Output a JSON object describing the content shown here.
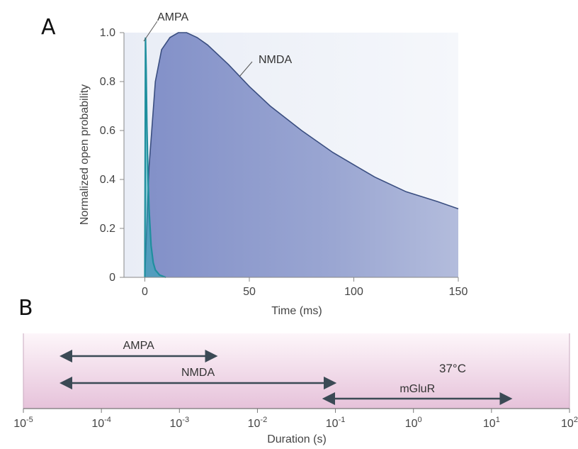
{
  "panels": {
    "a_letter": "A",
    "b_letter": "B"
  },
  "chart_data": [
    {
      "type": "area",
      "xlabel": "Time (ms)",
      "ylabel": "Normalized open probability",
      "xlim": [
        -10,
        150
      ],
      "ylim": [
        0,
        1.0
      ],
      "x_ticks": [
        "0",
        "50",
        "100",
        "150"
      ],
      "y_ticks": [
        "0",
        "0.2",
        "0.4",
        "0.6",
        "0.8",
        "1.0"
      ],
      "series": [
        {
          "name": "AMPA",
          "color": "#2aa7b5",
          "x": [
            0,
            0.3,
            0.6,
            1,
            1.5,
            2,
            3,
            4,
            5,
            7,
            10
          ],
          "y": [
            0.0,
            0.98,
            0.85,
            0.62,
            0.42,
            0.28,
            0.13,
            0.06,
            0.03,
            0.01,
            0.0
          ]
        },
        {
          "name": "NMDA",
          "color": "#3a4e80",
          "fill": "#7f8fc5",
          "x": [
            0,
            2,
            5,
            8,
            12,
            16,
            20,
            25,
            30,
            40,
            50,
            60,
            75,
            90,
            100,
            110,
            125,
            140,
            150
          ],
          "y": [
            0.0,
            0.45,
            0.8,
            0.93,
            0.98,
            1.0,
            1.0,
            0.98,
            0.95,
            0.87,
            0.78,
            0.7,
            0.6,
            0.51,
            0.46,
            0.41,
            0.35,
            0.31,
            0.28
          ]
        }
      ]
    },
    {
      "type": "range",
      "xlabel": "Duration (s)",
      "x_scale": "log",
      "xlim": [
        1e-05,
        100
      ],
      "x_ticks": [
        {
          "base": "10",
          "exp": "-5"
        },
        {
          "base": "10",
          "exp": "-4"
        },
        {
          "base": "10",
          "exp": "-3"
        },
        {
          "base": "10",
          "exp": "-2"
        },
        {
          "base": "10",
          "exp": "-1"
        },
        {
          "base": "10",
          "exp": "0"
        },
        {
          "base": "10",
          "exp": "1"
        },
        {
          "base": "10",
          "exp": "2"
        }
      ],
      "annotation": {
        "value": "37",
        "unit": "°C"
      },
      "ranges": [
        {
          "name": "AMPA",
          "start": 3e-05,
          "end": 0.003
        },
        {
          "name": "NMDA",
          "start": 3e-05,
          "end": 0.1
        },
        {
          "name": "mGluR",
          "start": 0.07,
          "end": 18
        }
      ],
      "colors": {
        "arrow": "#3b4a55",
        "band_top": "#ffffff",
        "band_bottom": "#e8c4dc"
      }
    }
  ]
}
